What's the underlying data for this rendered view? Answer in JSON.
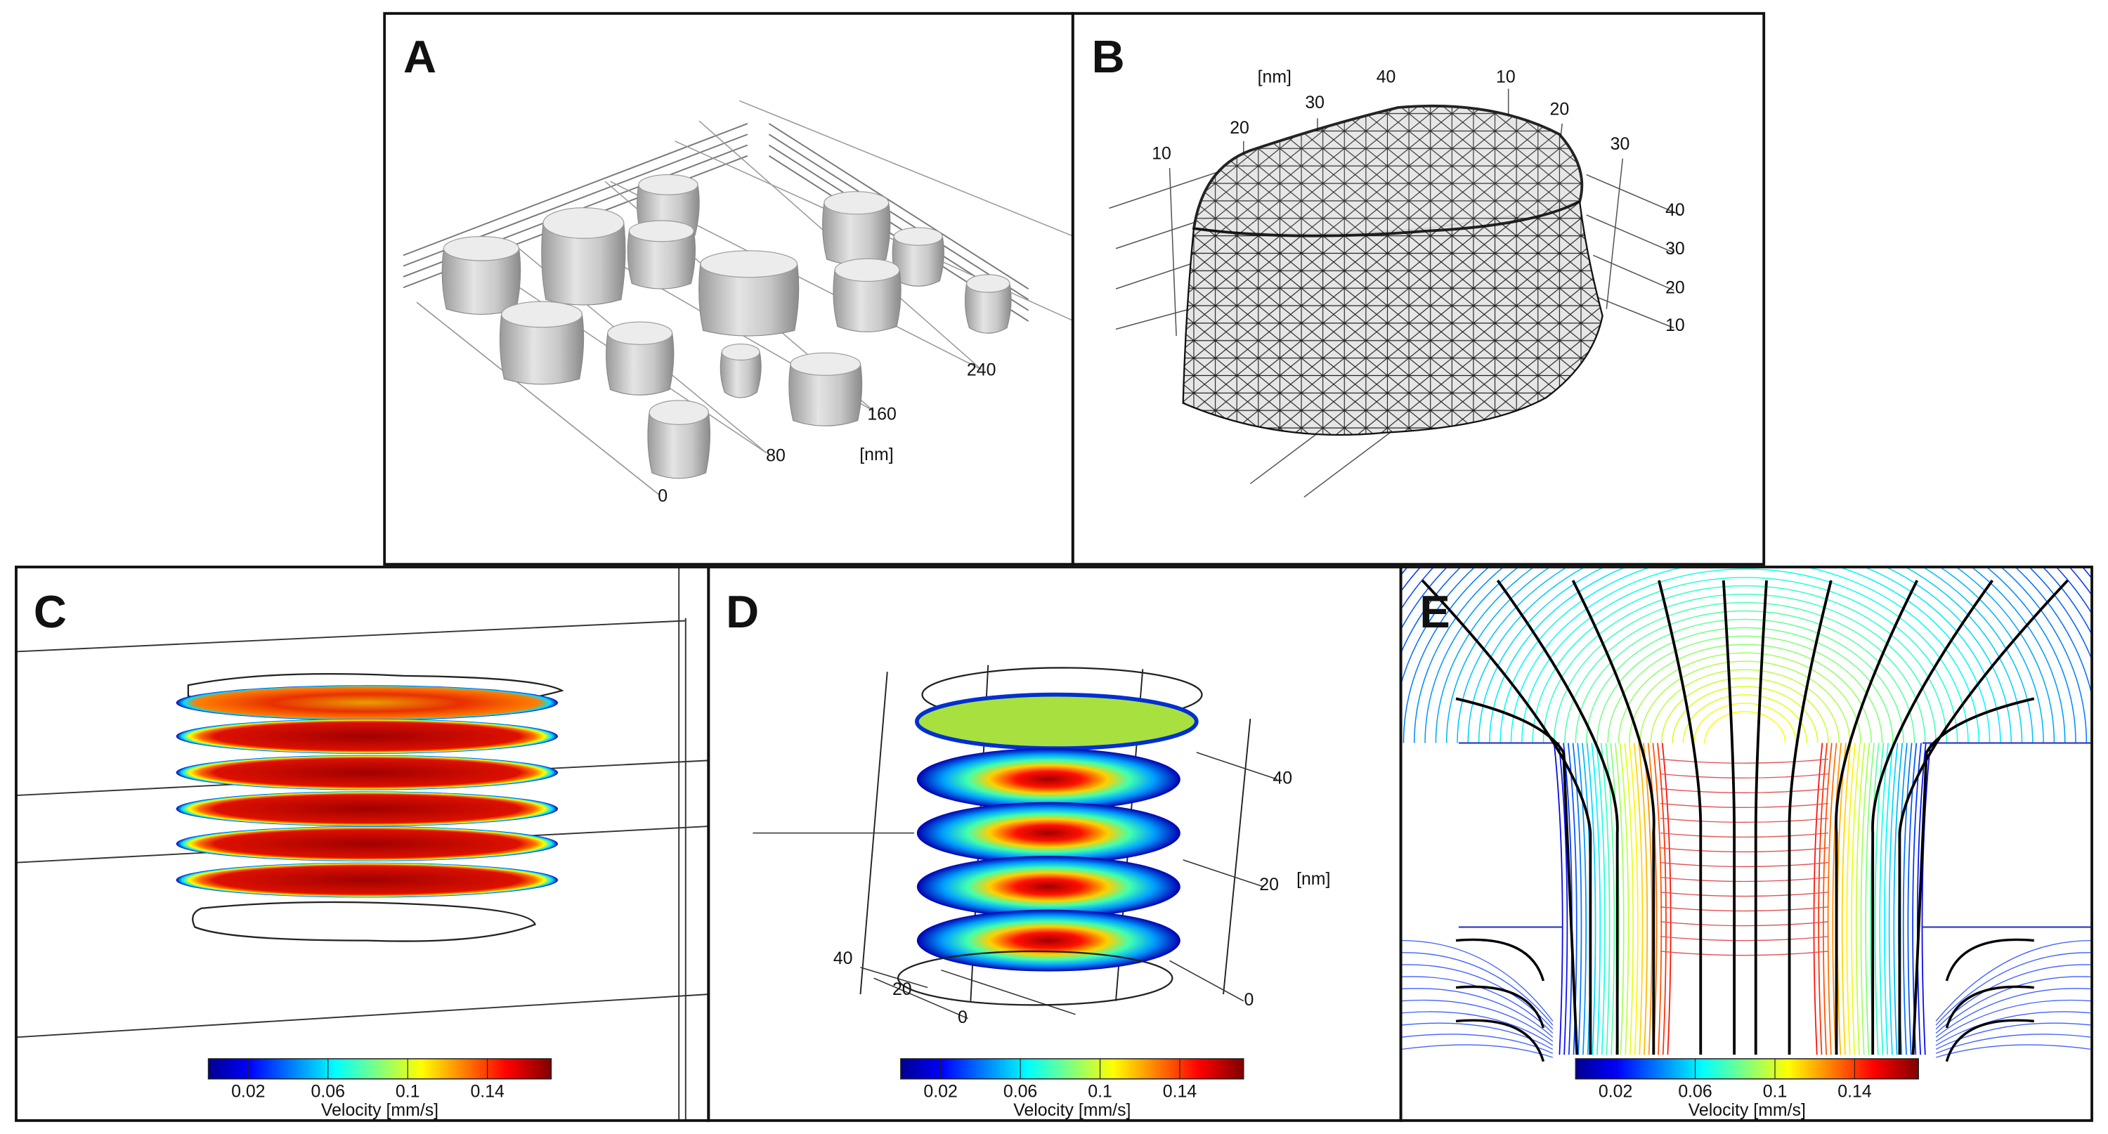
{
  "panels": [
    {
      "label": "A",
      "axis_labels": [
        "0",
        "80",
        "160",
        "240",
        "[nm]"
      ]
    },
    {
      "label": "B",
      "axis_labels": [
        "[nm]",
        "40",
        "30",
        "20",
        "10",
        "10",
        "20",
        "30",
        "40",
        "30",
        "20",
        "10"
      ]
    },
    {
      "label": "C"
    },
    {
      "label": "D",
      "axis_labels": [
        "40",
        "20",
        "[nm]",
        "0",
        "40",
        "20",
        "0"
      ]
    },
    {
      "label": "E"
    }
  ],
  "colorbar": {
    "range": [
      0,
      0.172
    ],
    "ticks": [
      0.02,
      0.06,
      0.1,
      0.14
    ],
    "label": "Velocity [mm/s]"
  }
}
